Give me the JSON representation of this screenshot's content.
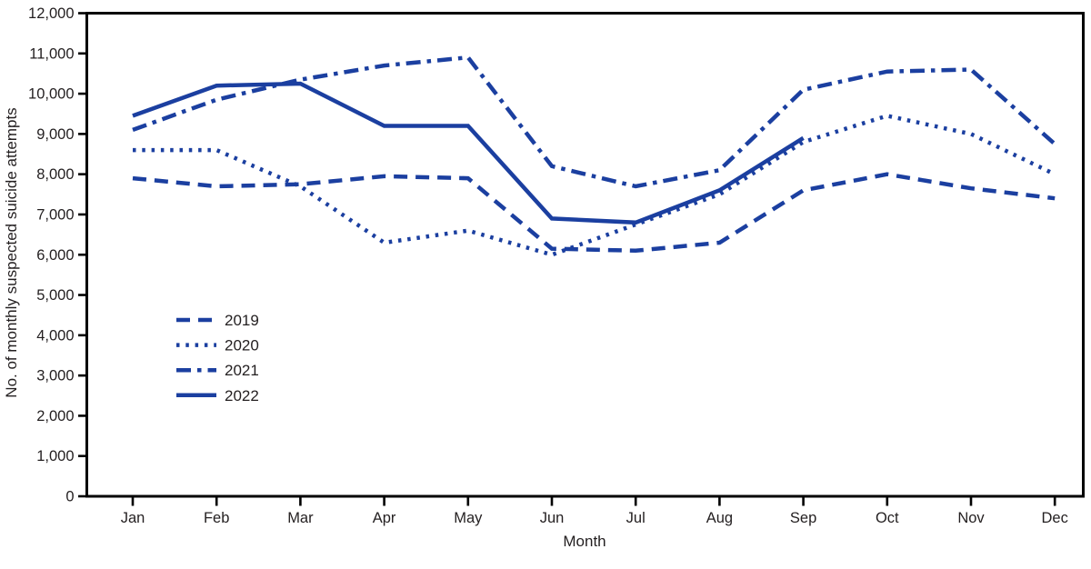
{
  "figure": {
    "background_color": "#ffffff",
    "frame_color": "#000000",
    "text_color": "#231f20"
  },
  "chart_data": {
    "type": "line",
    "title": "",
    "xlabel": "Month",
    "ylabel": "No. of monthly suspected suicide attempts",
    "categories": [
      "Jan",
      "Feb",
      "Mar",
      "Apr",
      "May",
      "Jun",
      "Jul",
      "Aug",
      "Sep",
      "Oct",
      "Nov",
      "Dec"
    ],
    "ylim": [
      0,
      12000
    ],
    "ytick_step": 1000,
    "grid": false,
    "legend_position": "inside-left-middle",
    "line_color": "#1b3fa0",
    "series": [
      {
        "name": "2019",
        "style": "dashed",
        "values": [
          7900,
          7700,
          7750,
          7950,
          7900,
          6150,
          6100,
          6300,
          7600,
          8000,
          7650,
          7400
        ]
      },
      {
        "name": "2020",
        "style": "dotted",
        "values": [
          8600,
          8600,
          7700,
          6300,
          6600,
          6000,
          6750,
          7500,
          8800,
          9450,
          9000,
          8000
        ]
      },
      {
        "name": "2021",
        "style": "dash-dot",
        "values": [
          9100,
          9850,
          10350,
          10700,
          10900,
          8200,
          7700,
          8100,
          10100,
          10550,
          10600,
          8750
        ]
      },
      {
        "name": "2022",
        "style": "solid",
        "values": [
          9450,
          10200,
          10250,
          9200,
          9200,
          6900,
          6800,
          7600,
          8900,
          null,
          null,
          null
        ]
      }
    ]
  }
}
